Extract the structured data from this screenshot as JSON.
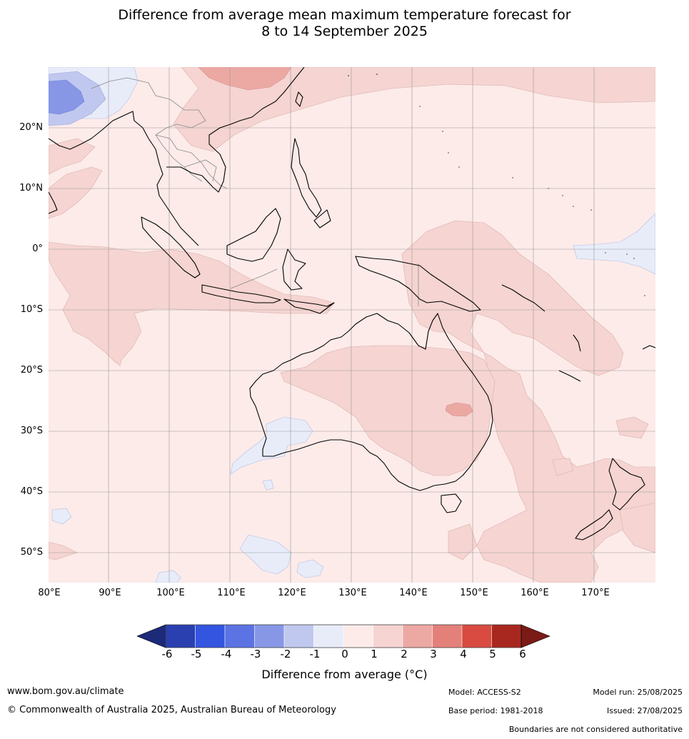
{
  "title": {
    "line1": "Difference from average mean maximum temperature forecast for",
    "line2": "8 to 14 September 2025"
  },
  "map": {
    "lat_labels": [
      "20°N",
      "10°N",
      "0°",
      "10°S",
      "20°S",
      "30°S",
      "40°S",
      "50°S"
    ],
    "lon_labels": [
      "80°E",
      "90°E",
      "100°E",
      "110°E",
      "120°E",
      "130°E",
      "140°E",
      "150°E",
      "160°E",
      "170°E"
    ],
    "colors": {
      "c_0_1": "#fcebe9",
      "c_1_2": "#f5d4d1",
      "c_2_3": "#eca9a4",
      "c_m1_0": "#e8ecf9",
      "c_m2_m1": "#c1c8f0",
      "c_m3_m2": "#8797e6",
      "coast": "#000000",
      "border": "#888888",
      "grid": "#999999"
    }
  },
  "colorbar": {
    "ticks": [
      "-6",
      "-5",
      "-4",
      "-3",
      "-2",
      "-1",
      "0",
      "1",
      "2",
      "3",
      "4",
      "5",
      "6"
    ],
    "colors": [
      "#1c2a7a",
      "#2a3fb0",
      "#3355e0",
      "#5b73e3",
      "#8797e6",
      "#c1c8f0",
      "#e8ecf9",
      "#fcebe9",
      "#f5d4d1",
      "#eca9a4",
      "#e4807a",
      "#d94b40",
      "#a8281f",
      "#7a1b17"
    ],
    "label": "Difference from average (°C)"
  },
  "footer": {
    "website": "www.bom.gov.au/climate",
    "copyright": "© Commonwealth of Australia 2025, Australian Bureau of Meteorology",
    "model": "Model: ACCESS-S2",
    "base_period": "Base period: 1981-2018",
    "model_run": "Model run: 25/08/2025",
    "issued": "Issued: 27/08/2025",
    "disclaimer": "Boundaries are not considered authoritative"
  }
}
